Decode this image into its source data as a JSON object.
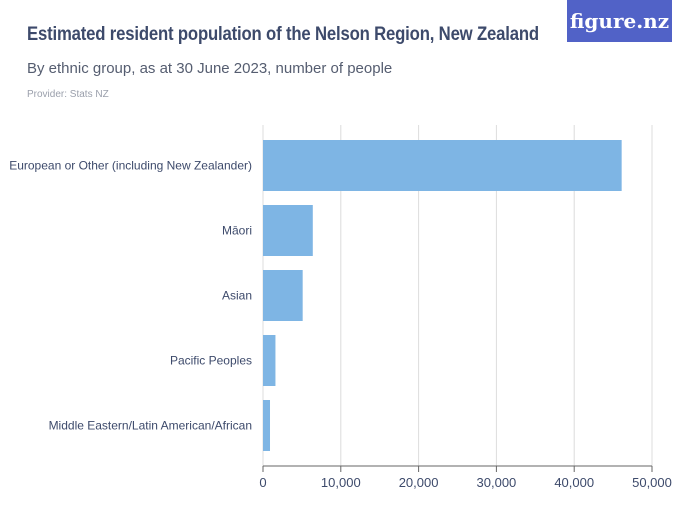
{
  "header": {
    "title": "Estimated resident population of the Nelson Region, New Zealand",
    "subtitle": "By ethnic group, as at 30 June 2023, number of people",
    "provider": "Provider: Stats NZ",
    "logo": "figure.nz"
  },
  "chart_data": {
    "type": "bar",
    "orientation": "horizontal",
    "title": "Estimated resident population of the Nelson Region, New Zealand",
    "subtitle": "By ethnic group, as at 30 June 2023, number of people",
    "categories": [
      "European or Other (including New Zealander)",
      "Māori",
      "Asian",
      "Pacific Peoples",
      "Middle Eastern/Latin American/African"
    ],
    "values": [
      46100,
      6400,
      5100,
      1600,
      900
    ],
    "xlim": [
      0,
      50000
    ],
    "xticks": [
      0,
      10000,
      20000,
      30000,
      40000,
      50000
    ],
    "xtick_labels": [
      "0",
      "10,000",
      "20,000",
      "30,000",
      "40,000",
      "50,000"
    ],
    "grid": true,
    "bar_color": "#7eb5e4"
  }
}
